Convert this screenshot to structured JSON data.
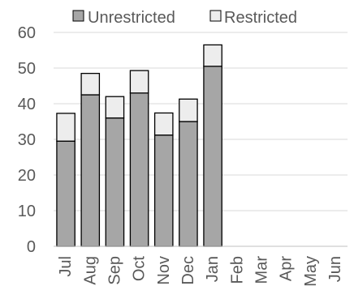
{
  "chart_data": {
    "type": "bar",
    "stacked": true,
    "categories": [
      "Jul",
      "Aug",
      "Sep",
      "Oct",
      "Nov",
      "Dec",
      "Jan",
      "Feb",
      "Mar",
      "Apr",
      "May",
      "Jun"
    ],
    "series": [
      {
        "name": "Unrestricted",
        "values": [
          29.5,
          42.5,
          36,
          43,
          31.2,
          35,
          50.5,
          null,
          null,
          null,
          null,
          null
        ],
        "color": "#a6a6a6"
      },
      {
        "name": "Restricted",
        "values": [
          7.8,
          6,
          6,
          6.3,
          6.2,
          6.3,
          6,
          null,
          null,
          null,
          null,
          null
        ],
        "color": "#ededed"
      }
    ],
    "ylim": [
      0,
      60
    ],
    "yticks": [
      0,
      10,
      20,
      30,
      40,
      50,
      60
    ],
    "grid": true,
    "legend": "top",
    "bar_edge_color": "#000000"
  }
}
